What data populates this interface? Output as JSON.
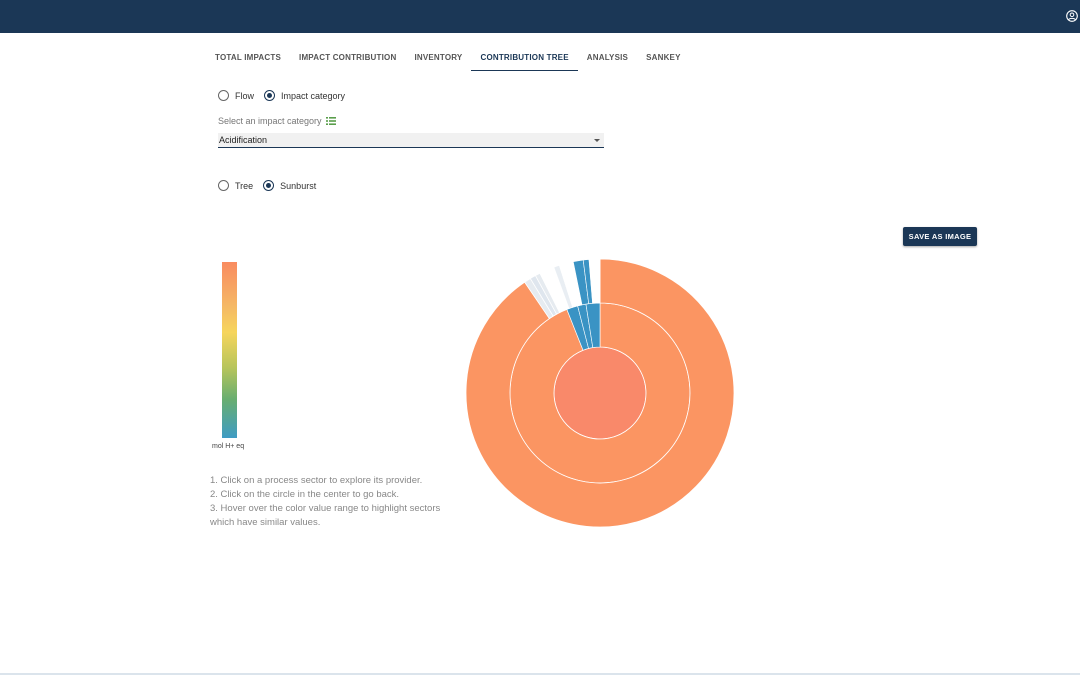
{
  "tabs": [
    {
      "label": "TOTAL IMPACTS",
      "active": false
    },
    {
      "label": "IMPACT CONTRIBUTION",
      "active": false
    },
    {
      "label": "INVENTORY",
      "active": false
    },
    {
      "label": "CONTRIBUTION TREE",
      "active": true
    },
    {
      "label": "ANALYSIS",
      "active": false
    },
    {
      "label": "SANKEY",
      "active": false
    }
  ],
  "mode": {
    "options": [
      {
        "label": "Flow",
        "checked": false
      },
      {
        "label": "Impact category",
        "checked": true
      }
    ]
  },
  "impact_select": {
    "label": "Select an impact category",
    "value": "Acidification"
  },
  "view": {
    "options": [
      {
        "label": "Tree",
        "checked": false
      },
      {
        "label": "Sunburst",
        "checked": true
      }
    ]
  },
  "save_button": "SAVE AS IMAGE",
  "legend": {
    "unit": "mol H+ eq",
    "colors": [
      "#f98b60",
      "#f6d55c",
      "#3f9cc4"
    ]
  },
  "instructions": [
    "1. Click on a process sector to explore its provider.",
    "2. Click on the circle in the center to go back.",
    "3. Hover over the color value range to highlight sectors which have similar values."
  ],
  "chart_data": {
    "type": "sunburst",
    "levels": [
      {
        "level": 1,
        "segments": [
          {
            "share": 1.0,
            "color": "#f9896a"
          }
        ]
      },
      {
        "level": 2,
        "segments": [
          {
            "share": 0.94,
            "color": "#fb9562"
          },
          {
            "share": 0.02,
            "color": "#3a93c4"
          },
          {
            "share": 0.015,
            "color": "#3a93c4"
          },
          {
            "share": 0.025,
            "color": "#3a93c4"
          }
        ]
      },
      {
        "level": 3,
        "segments": [
          {
            "share": 0.905,
            "color": "#fb9562"
          },
          {
            "share": 0.008,
            "color": "#e6ebf0"
          },
          {
            "share": 0.007,
            "color": "#dfe6ee"
          },
          {
            "share": 0.006,
            "color": "#e6ebf0"
          },
          {
            "share": 0.018,
            "color": "#ffffff"
          },
          {
            "share": 0.007,
            "color": "#e9eef3"
          },
          {
            "share": 0.017,
            "color": "#ffffff"
          },
          {
            "share": 0.012,
            "color": "#3a93c4"
          },
          {
            "share": 0.007,
            "color": "#3a93c4"
          },
          {
            "share": 0.013,
            "color": "#ffffff"
          }
        ]
      }
    ]
  }
}
